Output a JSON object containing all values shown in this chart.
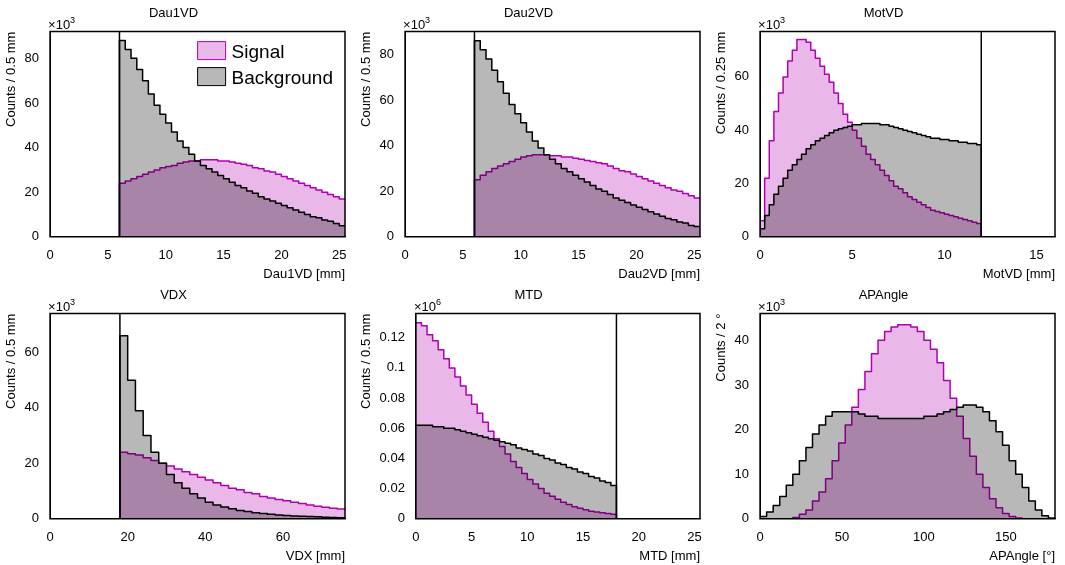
{
  "chart_data": [
    {
      "type": "histogram",
      "title": "Dau1VD",
      "xlabel": "Dau1VD [mm]",
      "ylabel": "Counts / 0.5 mm",
      "annotations": [
        "×10$^{3}$"
      ],
      "legend": "top right",
      "grid": false,
      "bins": [
        0,
        0.5,
        1,
        1.5,
        2,
        2.5,
        3,
        3.5,
        4,
        4.5,
        5,
        5.5,
        6,
        6.5,
        7,
        7.5,
        8,
        8.5,
        9,
        9.5,
        10,
        10.5,
        11,
        11.5,
        12,
        12.5,
        13,
        13.5,
        14,
        14.5,
        15,
        15.5,
        16,
        16.5,
        17,
        17.5,
        18,
        18.5,
        19,
        19.5,
        20,
        20.5,
        21,
        21.5,
        22,
        22.5,
        23,
        23.5,
        24,
        24.5,
        25,
        25.5
      ],
      "xlim": [
        0,
        25.5
      ],
      "xticks": [
        0,
        5,
        10,
        15,
        20,
        25
      ],
      "ylim": [
        0,
        92
      ],
      "yticks": [
        0,
        20,
        40,
        60,
        80
      ],
      "ref_lines": [
        {
          "axis": "x",
          "value": 6,
          "color": "#000000"
        }
      ],
      "series": [
        {
          "name": "Background",
          "color": "#000000",
          "values": [
            0,
            0,
            0,
            0,
            0,
            0,
            0,
            0,
            0,
            0,
            0,
            0,
            88,
            84,
            80,
            75,
            70,
            64,
            59,
            55,
            51,
            47,
            43,
            40,
            37,
            34,
            32,
            30.5,
            29,
            27.5,
            26,
            24.5,
            23,
            22,
            20.5,
            19.5,
            18,
            17,
            16,
            15,
            14,
            13,
            12,
            11,
            10,
            9,
            8.5,
            7.5,
            7,
            6,
            5
          ]
        },
        {
          "name": "Signal",
          "color": "#b000b0",
          "values": [
            0,
            0,
            0,
            0,
            0,
            0,
            0,
            0,
            0,
            0,
            0,
            0,
            24,
            25,
            26,
            27,
            28,
            29,
            30,
            31,
            31.5,
            32,
            33,
            33.5,
            34,
            34,
            34.5,
            34.5,
            34.5,
            34,
            34,
            33.5,
            33,
            32.5,
            32,
            31,
            30.5,
            29.5,
            29,
            28,
            27,
            26,
            25,
            24,
            23,
            22,
            21,
            20,
            19,
            18,
            17
          ]
        }
      ]
    },
    {
      "type": "histogram",
      "title": "Dau2VD",
      "xlabel": "Dau2VD [mm]",
      "ylabel": "Counts / 0.5 mm",
      "annotations": [
        "×10$^{3}$"
      ],
      "grid": false,
      "bins": [
        0,
        0.5,
        1,
        1.5,
        2,
        2.5,
        3,
        3.5,
        4,
        4.5,
        5,
        5.5,
        6,
        6.5,
        7,
        7.5,
        8,
        8.5,
        9,
        9.5,
        10,
        10.5,
        11,
        11.5,
        12,
        12.5,
        13,
        13.5,
        14,
        14.5,
        15,
        15.5,
        16,
        16.5,
        17,
        17.5,
        18,
        18.5,
        19,
        19.5,
        20,
        20.5,
        21,
        21.5,
        22,
        22.5,
        23,
        23.5,
        24,
        24.5,
        25,
        25.5
      ],
      "xlim": [
        0,
        25.5
      ],
      "xticks": [
        0,
        5,
        10,
        15,
        20,
        25
      ],
      "ylim": [
        0,
        90
      ],
      "yticks": [
        0,
        20,
        40,
        60,
        80
      ],
      "ref_lines": [
        {
          "axis": "x",
          "value": 6,
          "color": "#000000"
        }
      ],
      "series": [
        {
          "color": "#000000",
          "values": [
            0,
            0,
            0,
            0,
            0,
            0,
            0,
            0,
            0,
            0,
            0,
            0,
            86,
            82,
            78,
            73,
            68,
            63,
            58,
            54,
            50,
            46,
            42,
            39,
            36,
            34,
            32,
            30,
            28.5,
            27,
            25.5,
            24,
            22.5,
            21,
            20,
            18.5,
            17,
            16,
            15,
            14,
            13,
            12,
            11,
            10,
            9,
            8,
            7.5,
            6.5,
            6,
            5,
            4.5
          ]
        },
        {
          "color": "#b000b0",
          "values": [
            0,
            0,
            0,
            0,
            0,
            0,
            0,
            0,
            0,
            0,
            0,
            0,
            25,
            27,
            28.5,
            30,
            31,
            32,
            33,
            34,
            35,
            35.5,
            36,
            36,
            36,
            35.5,
            35.5,
            35,
            35,
            34.5,
            34,
            33.5,
            33,
            32.5,
            32,
            31,
            30,
            29,
            28.5,
            27.5,
            26.5,
            25.5,
            24.5,
            23.5,
            22.5,
            21.5,
            20.5,
            20,
            19,
            18,
            17
          ]
        }
      ]
    },
    {
      "type": "histogram",
      "title": "MotVD",
      "xlabel": "MotVD [mm]",
      "ylabel": "Counts / 0.25 mm",
      "annotations": [
        "×10$^{3}$"
      ],
      "grid": false,
      "bins": [
        0,
        0.25,
        0.5,
        0.75,
        1,
        1.25,
        1.5,
        1.75,
        2,
        2.25,
        2.5,
        2.75,
        3,
        3.25,
        3.5,
        3.75,
        4,
        4.25,
        4.5,
        4.75,
        5,
        5.25,
        5.5,
        5.75,
        6,
        6.25,
        6.5,
        6.75,
        7,
        7.25,
        7.5,
        7.75,
        8,
        8.25,
        8.5,
        8.75,
        9,
        9.25,
        9.5,
        9.75,
        10,
        10.25,
        10.5,
        10.75,
        11,
        11.25,
        11.5,
        11.75,
        12,
        12.25,
        12.5,
        12.75,
        13,
        13.25,
        13.5,
        13.75,
        14,
        14.25,
        14.5,
        14.75,
        15,
        15.25,
        15.5,
        15.75,
        16
      ],
      "xlim": [
        0,
        16
      ],
      "xticks": [
        0,
        5,
        10,
        15
      ],
      "ylim": [
        0,
        77
      ],
      "yticks": [
        0,
        20,
        40,
        60
      ],
      "ref_lines": [
        {
          "axis": "x",
          "value": 12,
          "color": "#000000"
        }
      ],
      "series": [
        {
          "color": "#000000",
          "values": [
            3,
            8,
            12,
            16,
            19,
            22,
            25,
            27,
            29,
            31,
            33,
            34.5,
            36,
            37,
            38,
            39,
            40,
            40.5,
            41,
            41.5,
            42,
            42,
            42.5,
            42.5,
            42.5,
            42.5,
            42,
            42,
            41.5,
            41,
            40.5,
            40,
            39.5,
            39,
            38.5,
            38,
            37.5,
            37,
            37,
            36.5,
            36.5,
            36,
            36,
            35.5,
            35.5,
            35,
            35,
            34.5,
            0,
            0,
            0,
            0,
            0,
            0,
            0,
            0,
            0,
            0,
            0,
            0,
            0,
            0,
            0,
            0
          ]
        },
        {
          "color": "#b000b0",
          "values": [
            6,
            22,
            36,
            47,
            54,
            60,
            66,
            70,
            74,
            74,
            73,
            70,
            67,
            64,
            61,
            58,
            54,
            50,
            46,
            43,
            40,
            37,
            34,
            31,
            29,
            27,
            25,
            23,
            21,
            19,
            18,
            16.5,
            15,
            14,
            13,
            12,
            11,
            10,
            9.5,
            9,
            8.5,
            8,
            7.5,
            7,
            6.5,
            6,
            5.5,
            5,
            0,
            0,
            0,
            0,
            0,
            0,
            0,
            0,
            0,
            0,
            0,
            0,
            0,
            0,
            0,
            0
          ]
        }
      ]
    },
    {
      "type": "histogram",
      "title": "VDX",
      "xlabel": "VDX [mm]",
      "ylabel": "Counts / 0.5 mm",
      "annotations": [
        "×10$^{3}$"
      ],
      "grid": false,
      "bins": [
        0,
        2,
        4,
        6,
        8,
        10,
        12,
        14,
        16,
        18,
        20,
        22,
        24,
        26,
        28,
        30,
        32,
        34,
        36,
        38,
        40,
        42,
        44,
        46,
        48,
        50,
        52,
        54,
        56,
        58,
        60,
        62,
        64,
        66,
        68,
        70,
        72,
        74,
        76
      ],
      "xlim": [
        0,
        76
      ],
      "xticks": [
        0,
        20,
        40,
        60
      ],
      "ylim": [
        0,
        74
      ],
      "yticks": [
        0,
        20,
        40,
        60
      ],
      "ref_lines": [
        {
          "axis": "x",
          "value": 18,
          "color": "#000000"
        }
      ],
      "series": [
        {
          "color": "#000000",
          "values": [
            0,
            0,
            0,
            0,
            0,
            0,
            0,
            0,
            0,
            66,
            50,
            39,
            30,
            24,
            20,
            16,
            13,
            11,
            9,
            7.5,
            6,
            5,
            4.3,
            3.6,
            3,
            2.6,
            2.2,
            1.9,
            1.6,
            1.4,
            1.2,
            1,
            0.9,
            0.8,
            0.7,
            0.6,
            0.5,
            0.4
          ]
        },
        {
          "color": "#b000b0",
          "values": [
            0,
            0,
            0,
            0,
            0,
            0,
            0,
            0,
            0,
            24,
            23.5,
            23,
            22,
            21,
            20,
            19,
            18,
            17,
            16,
            15,
            14,
            13,
            12,
            11,
            10.5,
            9.5,
            9,
            8,
            7.5,
            7,
            6.5,
            6,
            5.5,
            5,
            4.5,
            4.2,
            3.8,
            3.5
          ]
        }
      ]
    },
    {
      "type": "histogram",
      "title": "MTD",
      "xlabel": "MTD [mm]",
      "ylabel": "Counts / 0.5 mm",
      "annotations": [
        "×10$^{6}$"
      ],
      "grid": false,
      "bins": [
        0,
        0.5,
        1,
        1.5,
        2,
        2.5,
        3,
        3.5,
        4,
        4.5,
        5,
        5.5,
        6,
        6.5,
        7,
        7.5,
        8,
        8.5,
        9,
        9.5,
        10,
        10.5,
        11,
        11.5,
        12,
        12.5,
        13,
        13.5,
        14,
        14.5,
        15,
        15.5,
        16,
        16.5,
        17,
        17.5,
        18,
        18.5,
        19,
        19.5,
        20,
        20.5,
        21,
        21.5,
        22,
        22.5,
        23,
        23.5,
        24,
        24.5,
        25,
        25.5
      ],
      "xlim": [
        0,
        25.5
      ],
      "xticks": [
        0,
        5,
        10,
        15,
        20,
        25
      ],
      "ylim": [
        0,
        0.136
      ],
      "yticks": [
        0,
        0.02,
        0.04,
        0.06,
        0.08,
        0.1,
        0.12
      ],
      "ref_lines": [
        {
          "axis": "x",
          "value": 18,
          "color": "#000000"
        }
      ],
      "series": [
        {
          "color": "#000000",
          "values": [
            0.062,
            0.062,
            0.062,
            0.061,
            0.061,
            0.06,
            0.06,
            0.059,
            0.058,
            0.057,
            0.056,
            0.055,
            0.054,
            0.053,
            0.052,
            0.051,
            0.05,
            0.049,
            0.047,
            0.046,
            0.045,
            0.043,
            0.042,
            0.04,
            0.039,
            0.037,
            0.036,
            0.034,
            0.033,
            0.031,
            0.03,
            0.028,
            0.027,
            0.025,
            0.024,
            0.022,
            0,
            0,
            0,
            0,
            0,
            0,
            0,
            0,
            0,
            0,
            0,
            0,
            0,
            0,
            0
          ]
        },
        {
          "color": "#b000b0",
          "values": [
            0.13,
            0.128,
            0.122,
            0.118,
            0.112,
            0.106,
            0.1,
            0.094,
            0.088,
            0.082,
            0.076,
            0.07,
            0.064,
            0.058,
            0.053,
            0.048,
            0.043,
            0.038,
            0.034,
            0.03,
            0.026,
            0.023,
            0.02,
            0.017,
            0.015,
            0.013,
            0.011,
            0.0095,
            0.008,
            0.007,
            0.006,
            0.005,
            0.0045,
            0.004,
            0.0035,
            0.003,
            0,
            0,
            0,
            0,
            0,
            0,
            0,
            0,
            0,
            0,
            0,
            0,
            0,
            0,
            0
          ]
        }
      ]
    },
    {
      "type": "histogram",
      "title": "APAngle",
      "xlabel": "APAngle [°]",
      "ylabel": "Counts / 2 °",
      "annotations": [
        "×10$^{3}$"
      ],
      "grid": false,
      "bins": [
        0,
        4,
        8,
        12,
        16,
        20,
        24,
        28,
        32,
        36,
        40,
        44,
        48,
        52,
        56,
        60,
        64,
        68,
        72,
        76,
        80,
        84,
        88,
        92,
        96,
        100,
        104,
        108,
        112,
        116,
        120,
        124,
        128,
        132,
        136,
        140,
        144,
        148,
        152,
        156,
        160,
        164,
        168,
        172,
        176,
        180
      ],
      "xlim": [
        0,
        180
      ],
      "xticks": [
        0,
        50,
        100,
        150
      ],
      "ylim": [
        0,
        46
      ],
      "yticks": [
        0,
        10,
        20,
        30,
        40
      ],
      "series": [
        {
          "color": "#000000",
          "values": [
            0.5,
            1.5,
            3,
            5,
            7.5,
            10,
            13,
            16,
            19,
            21,
            23,
            24,
            24,
            24,
            24,
            23.5,
            23,
            23,
            22.5,
            22.5,
            22.5,
            22.5,
            22.5,
            22.5,
            22.5,
            23,
            23,
            23.5,
            24,
            24.5,
            25,
            25.5,
            25.5,
            25,
            24,
            22,
            19.5,
            16.5,
            13,
            10,
            7,
            4,
            2,
            0.7,
            0.2
          ]
        },
        {
          "color": "#b000b0",
          "values": [
            0,
            0,
            0,
            0,
            0,
            0.3,
            1,
            2,
            4,
            6,
            9,
            13,
            17,
            21,
            25,
            29,
            33,
            37,
            40,
            42,
            43,
            43.5,
            43.5,
            43,
            42,
            40,
            38,
            35,
            31,
            27,
            23,
            18,
            14,
            10,
            7,
            4.5,
            2.5,
            1.2,
            0.5,
            0.2,
            0,
            0,
            0,
            0,
            0
          ]
        }
      ]
    }
  ]
}
